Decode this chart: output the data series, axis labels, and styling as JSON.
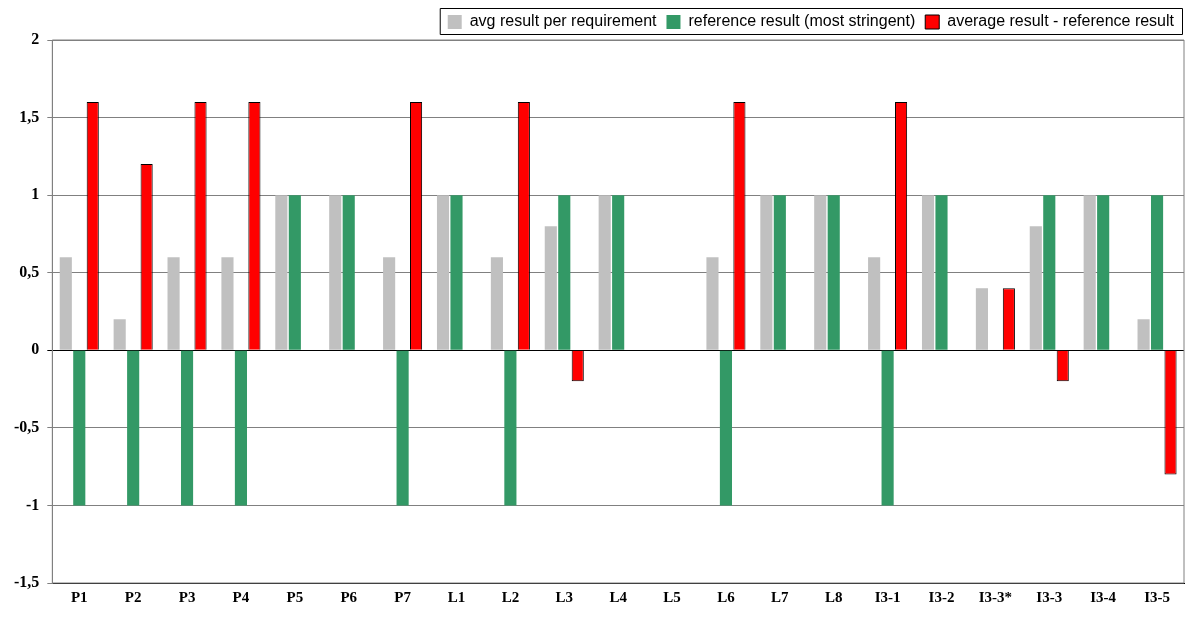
{
  "chart_data": {
    "type": "bar",
    "categories": [
      "P1",
      "P2",
      "P3",
      "P4",
      "P5",
      "P6",
      "P7",
      "L1",
      "L2",
      "L3",
      "L4",
      "L5",
      "L6",
      "L7",
      "L8",
      "I3-1",
      "I3-2",
      "I3-3*",
      "I3-3",
      "I3-4",
      "I3-5"
    ],
    "series": [
      {
        "name": "avg result per requirement",
        "color": "#c0c0c0",
        "values": [
          0.6,
          0.2,
          0.6,
          0.6,
          1,
          1,
          0.6,
          1,
          0.6,
          0.8,
          1,
          null,
          0.6,
          1,
          1,
          0.6,
          1,
          0.4,
          0.8,
          1,
          0.2
        ]
      },
      {
        "name": "reference result (most stringent)",
        "color": "#339966",
        "values": [
          -1,
          -1,
          -1,
          -1,
          1,
          1,
          -1,
          1,
          -1,
          1,
          1,
          null,
          -1,
          1,
          1,
          -1,
          1,
          null,
          1,
          1,
          1
        ]
      },
      {
        "name": "average result - reference result",
        "color": "#ff0000",
        "values": [
          1.6,
          1.2,
          1.6,
          1.6,
          0,
          0,
          1.6,
          0,
          1.6,
          -0.2,
          0,
          null,
          1.6,
          0,
          0,
          1.6,
          0,
          0.4,
          -0.2,
          0,
          -0.8
        ]
      }
    ],
    "ylim": [
      -1.5,
      2
    ],
    "yticks": [
      {
        "value": -1.5,
        "label": "-1,5"
      },
      -1,
      {
        "value": -0.5,
        "label": "-0,5"
      },
      0,
      {
        "value": 0.5,
        "label": "0,5"
      },
      1,
      {
        "value": 1.5,
        "label": "1,5"
      },
      2
    ],
    "grid": "y",
    "legend": "top"
  }
}
